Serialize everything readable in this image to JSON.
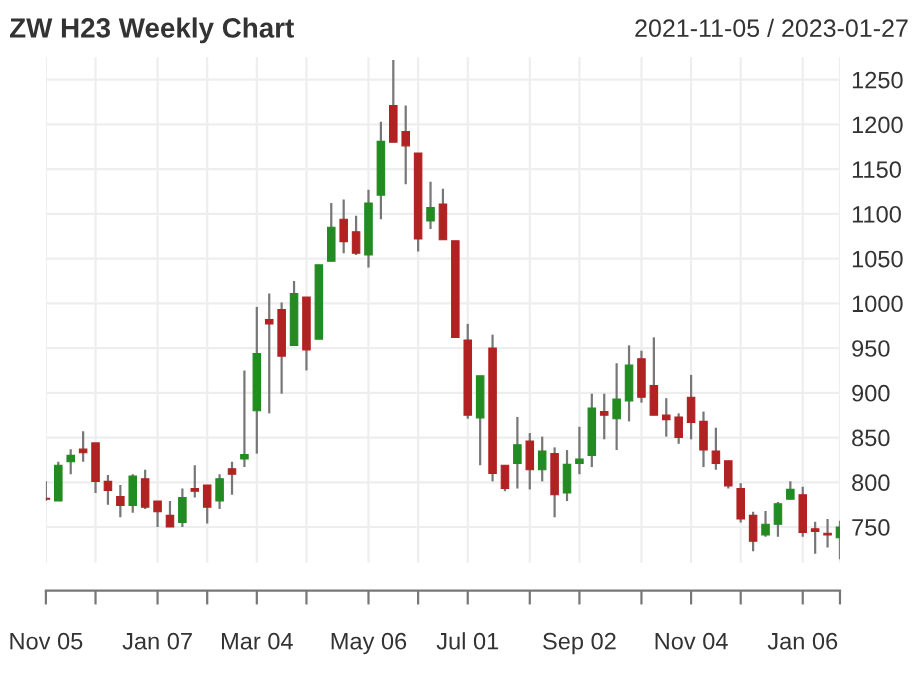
{
  "chart_data": {
    "type": "candlestick",
    "title": "ZW H23 Weekly Chart",
    "subtitle": "2021-11-05 / 2023-01-27",
    "x": [
      "2021-11-05",
      "2021-11-12",
      "2021-11-19",
      "2021-11-26",
      "2021-12-03",
      "2021-12-10",
      "2021-12-17",
      "2021-12-24",
      "2021-12-31",
      "2022-01-07",
      "2022-01-14",
      "2022-01-21",
      "2022-01-28",
      "2022-02-04",
      "2022-02-11",
      "2022-02-18",
      "2022-02-25",
      "2022-03-04",
      "2022-03-11",
      "2022-03-18",
      "2022-03-25",
      "2022-04-01",
      "2022-04-08",
      "2022-04-15",
      "2022-04-22",
      "2022-04-29",
      "2022-05-06",
      "2022-05-13",
      "2022-05-20",
      "2022-05-27",
      "2022-06-03",
      "2022-06-10",
      "2022-06-17",
      "2022-06-24",
      "2022-07-01",
      "2022-07-08",
      "2022-07-15",
      "2022-07-22",
      "2022-07-29",
      "2022-08-05",
      "2022-08-12",
      "2022-08-19",
      "2022-08-26",
      "2022-09-02",
      "2022-09-09",
      "2022-09-16",
      "2022-09-23",
      "2022-09-30",
      "2022-10-07",
      "2022-10-14",
      "2022-10-21",
      "2022-10-28",
      "2022-11-04",
      "2022-11-11",
      "2022-11-18",
      "2022-11-25",
      "2022-12-02",
      "2022-12-09",
      "2022-12-16",
      "2022-12-23",
      "2022-12-30",
      "2023-01-06",
      "2023-01-13",
      "2023-01-20",
      "2023-01-27"
    ],
    "ohlc": [
      [
        782,
        801,
        779,
        781
      ],
      [
        779,
        823,
        779,
        819
      ],
      [
        823,
        837,
        809,
        830
      ],
      [
        837,
        857,
        823,
        833
      ],
      [
        844,
        844,
        788,
        801
      ],
      [
        801,
        808,
        775,
        791
      ],
      [
        784,
        797,
        761,
        774
      ],
      [
        774,
        809,
        766,
        807
      ],
      [
        804,
        814,
        770,
        772
      ],
      [
        779,
        779,
        750,
        767
      ],
      [
        763,
        779,
        750,
        750
      ],
      [
        755,
        793,
        750,
        783
      ],
      [
        793,
        819,
        783,
        790
      ],
      [
        797,
        797,
        754,
        772
      ],
      [
        779,
        809,
        770,
        804
      ],
      [
        815,
        823,
        786,
        809
      ],
      [
        826,
        925,
        817,
        831
      ],
      [
        880,
        996,
        832,
        944
      ],
      [
        982,
        1011,
        877,
        977
      ],
      [
        993,
        1001,
        899,
        941
      ],
      [
        953,
        1025,
        953,
        1011
      ],
      [
        1007,
        1007,
        925,
        948
      ],
      [
        960,
        1043,
        960,
        1043
      ],
      [
        1047,
        1112,
        1047,
        1085
      ],
      [
        1094,
        1116,
        1056,
        1069
      ],
      [
        1080,
        1098,
        1054,
        1056
      ],
      [
        1054,
        1127,
        1040,
        1112
      ],
      [
        1121,
        1203,
        1094,
        1181
      ],
      [
        1221,
        1272,
        1180,
        1180
      ],
      [
        1192,
        1221,
        1133,
        1176
      ],
      [
        1168,
        1168,
        1058,
        1072
      ],
      [
        1092,
        1136,
        1083,
        1107
      ],
      [
        1111,
        1128,
        1071,
        1071
      ],
      [
        1070,
        1070,
        962,
        962
      ],
      [
        959,
        977,
        871,
        875
      ],
      [
        872,
        919,
        819,
        919
      ],
      [
        950,
        965,
        801,
        810
      ],
      [
        819,
        819,
        790,
        793
      ],
      [
        821,
        873,
        793,
        842
      ],
      [
        846,
        855,
        792,
        814
      ],
      [
        814,
        851,
        801,
        835
      ],
      [
        832,
        839,
        761,
        786
      ],
      [
        788,
        836,
        779,
        820
      ],
      [
        821,
        862,
        809,
        826
      ],
      [
        830,
        899,
        817,
        883
      ],
      [
        879,
        899,
        848,
        875
      ],
      [
        871,
        933,
        836,
        893
      ],
      [
        891,
        953,
        868,
        931
      ],
      [
        938,
        947,
        889,
        895
      ],
      [
        908,
        962,
        875,
        875
      ],
      [
        875,
        894,
        851,
        870
      ],
      [
        873,
        877,
        843,
        850
      ],
      [
        895,
        920,
        848,
        867
      ],
      [
        868,
        879,
        817,
        836
      ],
      [
        835,
        861,
        814,
        821
      ],
      [
        824,
        824,
        793,
        796
      ],
      [
        793,
        799,
        755,
        759
      ],
      [
        763,
        767,
        723,
        734
      ],
      [
        741,
        768,
        739,
        753
      ],
      [
        753,
        778,
        739,
        776
      ],
      [
        781,
        801,
        781,
        792
      ],
      [
        786,
        795,
        739,
        744
      ],
      [
        748,
        756,
        720,
        745
      ],
      [
        743,
        759,
        727,
        741
      ],
      [
        738,
        757,
        714,
        750
      ]
    ],
    "colors": [
      "#b22222",
      "#228b22",
      "#228b22",
      "#b22222",
      "#b22222",
      "#b22222",
      "#b22222",
      "#228b22",
      "#b22222",
      "#b22222",
      "#b22222",
      "#228b22",
      "#b22222",
      "#b22222",
      "#228b22",
      "#b22222",
      "#228b22",
      "#228b22",
      "#b22222",
      "#b22222",
      "#228b22",
      "#b22222",
      "#228b22",
      "#228b22",
      "#b22222",
      "#b22222",
      "#228b22",
      "#228b22",
      "#b22222",
      "#b22222",
      "#b22222",
      "#228b22",
      "#b22222",
      "#b22222",
      "#b22222",
      "#228b22",
      "#b22222",
      "#b22222",
      "#228b22",
      "#b22222",
      "#228b22",
      "#b22222",
      "#228b22",
      "#228b22",
      "#228b22",
      "#b22222",
      "#228b22",
      "#228b22",
      "#b22222",
      "#b22222",
      "#b22222",
      "#b22222",
      "#b22222",
      "#b22222",
      "#b22222",
      "#b22222",
      "#b22222",
      "#b22222",
      "#228b22",
      "#228b22",
      "#228b22",
      "#b22222",
      "#b22222",
      "#b22222",
      "#228b22"
    ],
    "xlim": [
      "2021-11-05",
      "2023-01-27"
    ],
    "xticks": [
      {
        "value": "2021-11-05",
        "label": "Nov 05"
      },
      {
        "value": "2021-12-03",
        "label": null
      },
      {
        "value": "2022-01-07",
        "label": "Jan 07"
      },
      {
        "value": "2022-02-04",
        "label": null
      },
      {
        "value": "2022-03-04",
        "label": "Mar 04"
      },
      {
        "value": "2022-04-01",
        "label": null
      },
      {
        "value": "2022-05-06",
        "label": "May 06"
      },
      {
        "value": "2022-06-03",
        "label": null
      },
      {
        "value": "2022-07-01",
        "label": "Jul 01"
      },
      {
        "value": "2022-08-05",
        "label": null
      },
      {
        "value": "2022-09-02",
        "label": "Sep 02"
      },
      {
        "value": "2022-10-07",
        "label": null
      },
      {
        "value": "2022-11-04",
        "label": "Nov 04"
      },
      {
        "value": "2022-12-02",
        "label": null
      },
      {
        "value": "2023-01-06",
        "label": "Jan 06"
      },
      {
        "value": "2023-01-27",
        "label": null
      }
    ],
    "ylim": [
      710,
      1275
    ],
    "yticks": [
      750,
      800,
      850,
      900,
      950,
      1000,
      1050,
      1100,
      1150,
      1200,
      1250
    ],
    "grid": true
  }
}
